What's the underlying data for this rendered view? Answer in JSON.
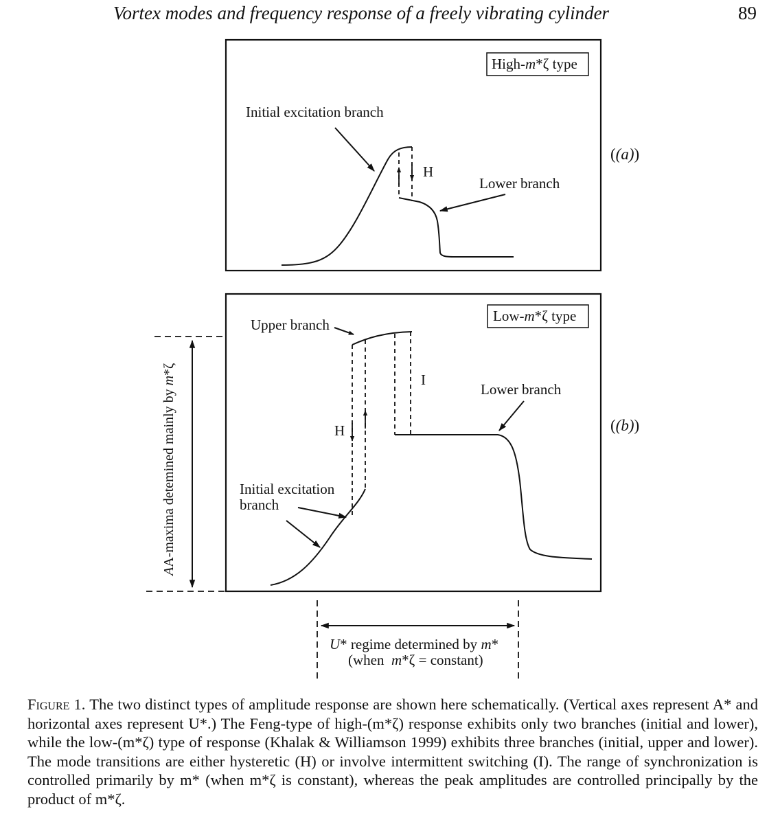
{
  "header": {
    "running_title": "Vortex modes and frequency response of a freely vibrating cylinder",
    "page_number": "89"
  },
  "figure": {
    "panel_a": {
      "label": "(a)",
      "type_box": {
        "prefix": "High-",
        "var": "m",
        "suffix": "*ζ type"
      },
      "initial_branch_label": "Initial excitation branch",
      "transition_label": "H",
      "lower_branch_label": "Lower branch"
    },
    "panel_b": {
      "label": "(b)",
      "type_box": {
        "prefix": "Low-",
        "var": "m",
        "suffix": "*ζ type"
      },
      "upper_branch_label": "Upper branch",
      "intermittent_label": "I",
      "hysteretic_label": "H",
      "lower_branch_label": "Lower branch",
      "initial_branch_label_line1": "Initial excitation",
      "initial_branch_label_line2": "branch"
    },
    "vertical_annotation": {
      "text": "A-maxima detemined mainly by ",
      "var": "m",
      "suffix": "*ζ"
    },
    "horizontal_annotation": {
      "line1_var": "U",
      "line1": "* regime determined by ",
      "line1_var2": "m",
      "line1_end": "*",
      "line2": "(when  ",
      "line2_var": "m",
      "line2_end": "*ζ = constant)"
    }
  },
  "caption": {
    "figure_label": "Figure 1.",
    "text": " The two distinct types of amplitude response are shown here schematically. (Vertical axes represent A* and horizontal axes represent U*.) The Feng-type of high-(m*ζ) response exhibits only two branches (initial and lower), while the low-(m*ζ) type of response (Khalak & Williamson 1999) exhibits three branches (initial, upper and lower). The mode transitions are either hysteretic (H) or involve intermittent switching (I). The range of synchronization is controlled primarily by m* (when m*ζ is constant), whereas the peak amplitudes are controlled principally by the product of m*ζ."
  }
}
